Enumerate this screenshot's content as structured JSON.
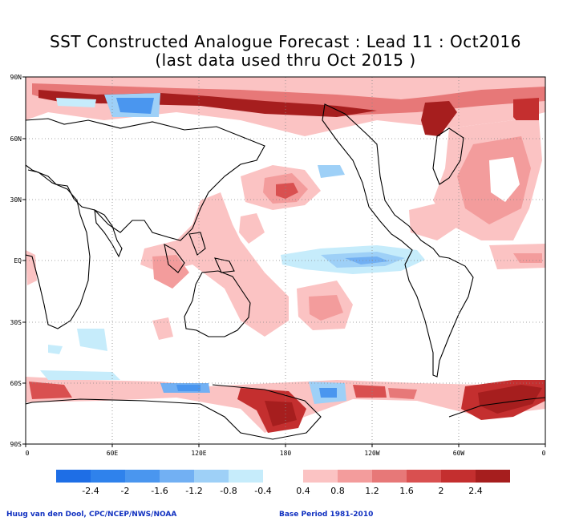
{
  "title_line1": "SST Constructed Analogue Forecast : Lead 11 : Oct2016",
  "title_line2": "(last data used thru Oct 2015 )",
  "lat_labels": [
    "90N",
    "60N",
    "30N",
    "EQ",
    "30S",
    "60S",
    "90S"
  ],
  "lon_labels": [
    "0",
    "60E",
    "120E",
    "180",
    "120W",
    "60W",
    "0"
  ],
  "colorbar": {
    "neg_labels": [
      "-2.4",
      "-2",
      "-1.6",
      "-1.2",
      "-0.8",
      "-0.4"
    ],
    "pos_labels": [
      "0.4",
      "0.8",
      "1.2",
      "1.6",
      "2",
      "2.4"
    ],
    "neg_colors": [
      "#1e6ee6",
      "#2f82ec",
      "#4a96ef",
      "#72b0f3",
      "#9ed0f7",
      "#c6ecfb"
    ],
    "pos_colors": [
      "#fbc3c3",
      "#f39c9c",
      "#e77878",
      "#d95050",
      "#c42f2f",
      "#a61e1e"
    ]
  },
  "credit_left": "Huug van den Dool, CPC/NCEP/NWS/NOAA",
  "credit_right": "Base Period 1981-2010"
}
